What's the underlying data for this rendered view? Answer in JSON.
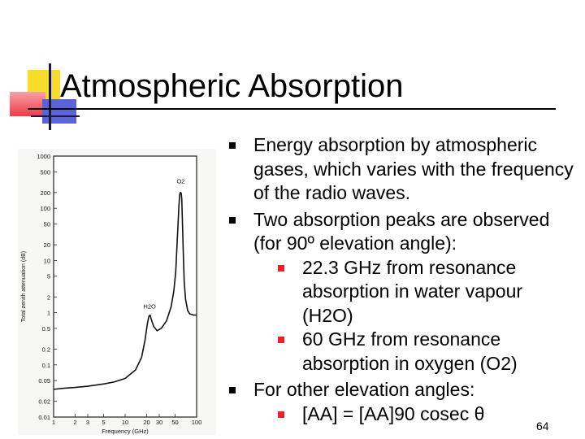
{
  "title": "Atmospheric Absorption",
  "bullets": [
    {
      "text": "Energy absorption by atmospheric gases, which varies with the frequency of the radio waves.",
      "subs": []
    },
    {
      "text": "Two absorption peaks are observed (for 90º elevation angle):",
      "subs": [
        "22.3 GHz from resonance absorption in water vapour (H2O)",
        "60 GHz from resonance absorption in oxygen (O2)"
      ]
    },
    {
      "text": "For other elevation angles:",
      "subs": [
        "[AA] = [AA]90 cosec θ"
      ]
    }
  ],
  "page_number": "64",
  "chart_data": {
    "type": "line",
    "xlabel": "Frequency (GHz)",
    "ylabel": "Total zenith attenuation (dB)",
    "x_scale": "log",
    "y_scale": "log",
    "xlim": [
      1,
      100
    ],
    "ylim": [
      0.01,
      1000
    ],
    "x_ticks": [
      "1",
      "2",
      "3",
      "5",
      "10",
      "20",
      "30",
      "50",
      "100"
    ],
    "y_ticks": [
      "1000",
      "500",
      "200",
      "100",
      "50",
      "20",
      "10",
      "5",
      "2",
      "1",
      "0.5",
      "0.2",
      "0.1",
      "0.05",
      "0.02",
      "0.01"
    ],
    "annotations": [
      {
        "text": "O2",
        "x": 60,
        "y": 300
      },
      {
        "text": "H2O",
        "x": 22,
        "y": 1.2
      }
    ],
    "series": [
      {
        "x": [
          1,
          1.5,
          2,
          3,
          5,
          7,
          10,
          14,
          17,
          19,
          20.5,
          21.5,
          22.3,
          23.2,
          25,
          28,
          32,
          38,
          44,
          48,
          51,
          53,
          55,
          56.5,
          58,
          59,
          60,
          61,
          62,
          63,
          65,
          67,
          70,
          75,
          80,
          90,
          100
        ],
        "y": [
          0.034,
          0.036,
          0.037,
          0.039,
          0.043,
          0.047,
          0.055,
          0.08,
          0.14,
          0.3,
          0.62,
          0.85,
          0.9,
          0.75,
          0.55,
          0.45,
          0.5,
          0.7,
          1.3,
          2.6,
          6,
          18,
          50,
          110,
          180,
          200,
          200,
          190,
          150,
          70,
          15,
          4,
          1.8,
          1.1,
          0.95,
          0.9,
          0.9
        ]
      }
    ]
  }
}
